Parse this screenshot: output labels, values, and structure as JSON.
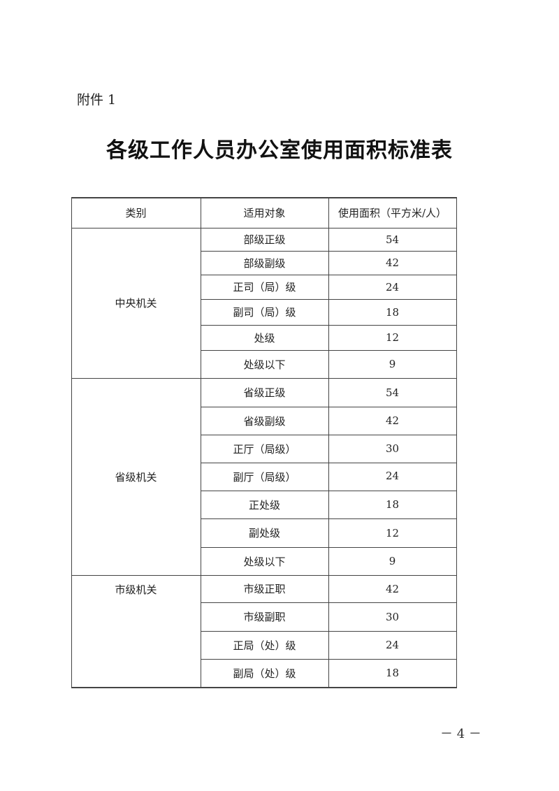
{
  "attachment_label": "附件 1",
  "title": "各级工作人员办公室使用面积标准表",
  "table": {
    "headers": [
      "类别",
      "适用对象",
      "使用面积（平方米/人）"
    ],
    "groups": [
      {
        "category": "中央机关",
        "rows": [
          {
            "target": "部级正级",
            "area": "54"
          },
          {
            "target": "部级副级",
            "area": "42"
          },
          {
            "target": "正司（局）级",
            "area": "24"
          },
          {
            "target": "副司（局）级",
            "area": "18"
          },
          {
            "target": "处级",
            "area": "12"
          },
          {
            "target": "处级以下",
            "area": "9"
          }
        ]
      },
      {
        "category": "省级机关",
        "rows": [
          {
            "target": "省级正级",
            "area": "54"
          },
          {
            "target": "省级副级",
            "area": "42"
          },
          {
            "target": "正厅（局级）",
            "area": "30"
          },
          {
            "target": "副厅（局级）",
            "area": "24"
          },
          {
            "target": "正处级",
            "area": "18"
          },
          {
            "target": "副处级",
            "area": "12"
          },
          {
            "target": "处级以下",
            "area": "9"
          }
        ]
      },
      {
        "category": "市级机关",
        "rows": [
          {
            "target": "市级正职",
            "area": "42"
          },
          {
            "target": "市级副职",
            "area": "30"
          },
          {
            "target": "正局（处）级",
            "area": "24"
          },
          {
            "target": "副局（处）级",
            "area": "18"
          }
        ]
      }
    ]
  },
  "page_number": "－ 4 －"
}
